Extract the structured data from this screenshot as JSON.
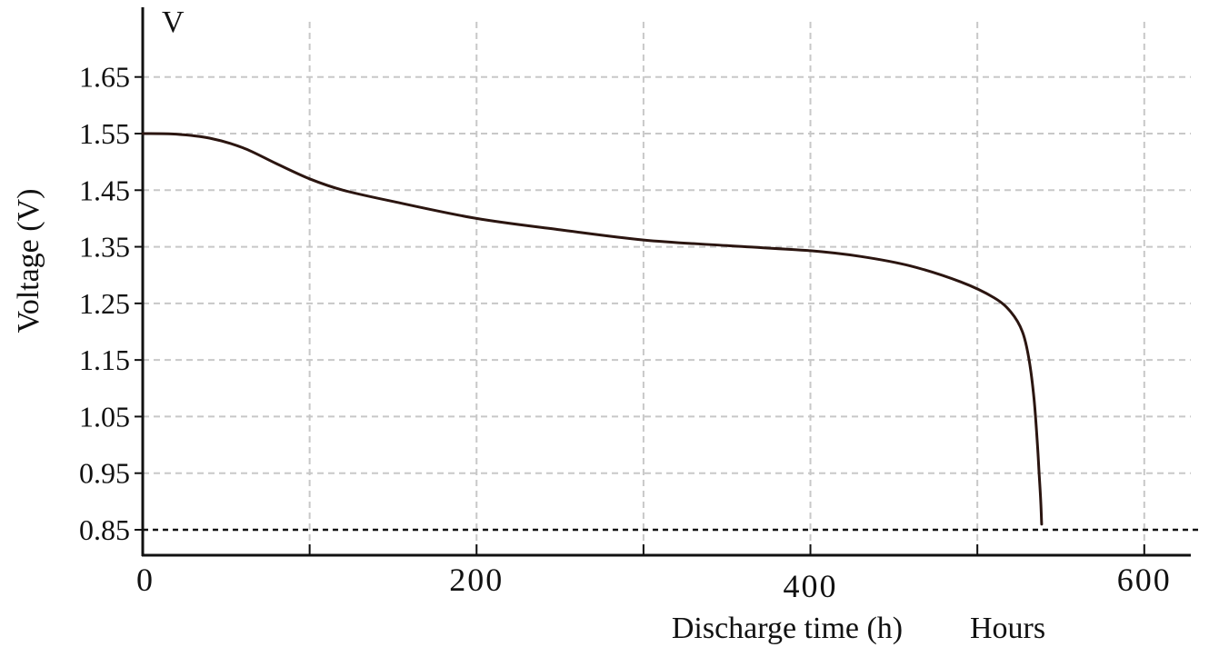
{
  "chart_data": {
    "type": "line",
    "title": "",
    "ylabel": "Voltage  (V)",
    "yunit": "V",
    "xlabel": "Discharge time (h)",
    "xunit": "Hours",
    "xlim": [
      0,
      630
    ],
    "ylim": [
      0.8,
      1.74
    ],
    "yticks": [
      0.85,
      0.95,
      1.05,
      1.15,
      1.25,
      1.35,
      1.45,
      1.55,
      1.65
    ],
    "ytick_labels": [
      "0.85",
      "0.95",
      "1.05",
      "1.15",
      "1.25",
      "1.35",
      "1.45",
      "1.55",
      "1.65"
    ],
    "xticks": [
      0,
      100,
      200,
      300,
      400,
      500,
      600
    ],
    "xtick_labels": [
      "0",
      "",
      "200",
      "",
      "400",
      "",
      "600"
    ],
    "grid": true,
    "cutoff_voltage": 0.85,
    "series": [
      {
        "color": "#2b1510",
        "x": [
          0,
          20,
          40,
          60,
          80,
          100,
          120,
          150,
          200,
          250,
          300,
          350,
          400,
          430,
          460,
          490,
          510,
          520,
          527,
          531,
          534,
          536,
          537,
          538,
          538.5
        ],
        "y": [
          1.55,
          1.549,
          1.542,
          1.525,
          1.497,
          1.47,
          1.45,
          1.43,
          1.4,
          1.38,
          1.362,
          1.352,
          1.343,
          1.333,
          1.316,
          1.288,
          1.26,
          1.235,
          1.2,
          1.15,
          1.08,
          1.0,
          0.95,
          0.9,
          0.86
        ]
      }
    ],
    "colors": {
      "grid": "#c8c8c8",
      "axis": "#111111",
      "cutoff": "#111111"
    }
  }
}
